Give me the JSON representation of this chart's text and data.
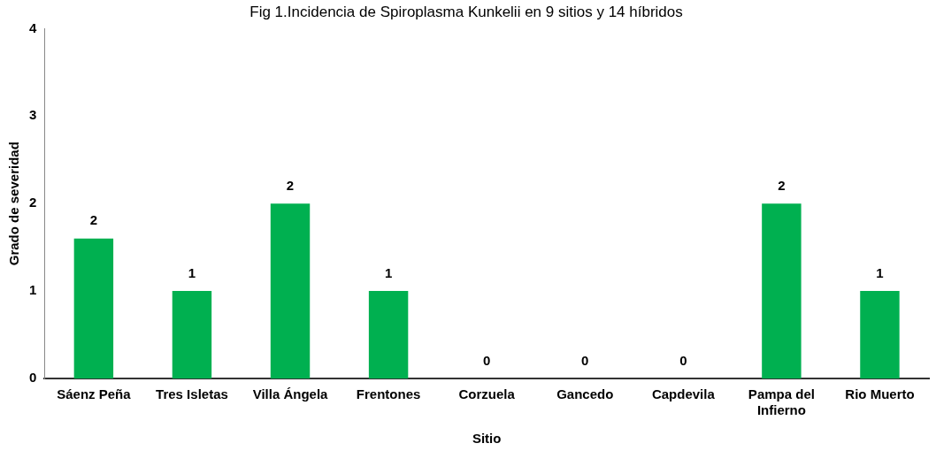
{
  "chart_data": {
    "type": "bar",
    "title": "Fig 1.Incidencia de Spiroplasma Kunkelii en 9 sitios y 14 híbridos",
    "xlabel": "Sitio",
    "ylabel": "Grado de severidad",
    "categories": [
      "Sáenz Peña",
      "Tres Isletas",
      "Villa Ángela",
      "Frentones",
      "Corzuela",
      "Gancedo",
      "Capdevila",
      "Pampa del Infierno",
      "Rio Muerto"
    ],
    "values": [
      1.6,
      1,
      2,
      1,
      0,
      0,
      0,
      2,
      1
    ],
    "value_labels": [
      "2",
      "1",
      "2",
      "1",
      "0",
      "0",
      "0",
      "2",
      "1"
    ],
    "color": "#00b050",
    "ylim": [
      0,
      4
    ],
    "yticks": [
      0,
      1,
      2,
      3,
      4
    ],
    "grid": false,
    "legend": false
  }
}
